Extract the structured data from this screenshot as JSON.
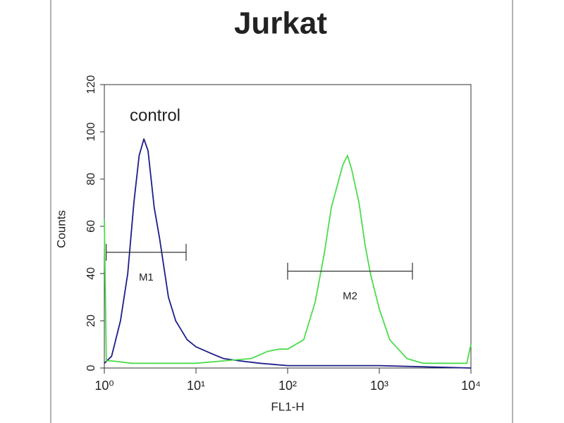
{
  "chart_data": {
    "type": "line",
    "title": "Jurkat",
    "x_label": "FL1-H",
    "y_label": "Counts",
    "log_x": true,
    "xlim": [
      1,
      10000
    ],
    "xticks": [
      {
        "value": 1,
        "label": "10⁰"
      },
      {
        "value": 10,
        "label": "10¹"
      },
      {
        "value": 100,
        "label": "10²"
      },
      {
        "value": 1000,
        "label": "10³"
      },
      {
        "value": 10000,
        "label": "10⁴"
      }
    ],
    "ylim": [
      0,
      120
    ],
    "yticks": [
      0,
      20,
      40,
      60,
      80,
      100,
      120
    ],
    "series": [
      {
        "name": "control",
        "color": "#1c1c8a",
        "x": [
          1,
          1.2,
          1.5,
          1.8,
          2.1,
          2.4,
          2.7,
          3.0,
          3.5,
          4,
          5,
          6,
          8,
          10,
          15,
          20,
          30,
          50,
          100,
          1000,
          10000
        ],
        "values": [
          2,
          5,
          20,
          40,
          70,
          90,
          97,
          92,
          68,
          55,
          30,
          20,
          12,
          9,
          6,
          4,
          3,
          2,
          1,
          1,
          0
        ]
      },
      {
        "color": "#4cdc4c",
        "x": [
          1,
          1.05,
          1.2,
          2,
          5,
          10,
          20,
          40,
          60,
          80,
          100,
          150,
          200,
          250,
          300,
          400,
          450,
          500,
          600,
          700,
          800,
          1000,
          1300,
          2000,
          3000,
          5000,
          9000,
          10000
        ],
        "values": [
          63,
          3,
          3,
          2,
          2,
          2,
          3,
          4,
          7,
          8,
          8,
          12,
          28,
          48,
          68,
          86,
          90,
          84,
          70,
          52,
          40,
          25,
          12,
          4,
          2,
          2,
          2,
          10
        ]
      }
    ],
    "markers": [
      {
        "label": "M1",
        "x": [
          1.05,
          7.8
        ],
        "y": 49
      },
      {
        "label": "M2",
        "x": [
          100,
          2300
        ],
        "y": 41
      }
    ]
  }
}
